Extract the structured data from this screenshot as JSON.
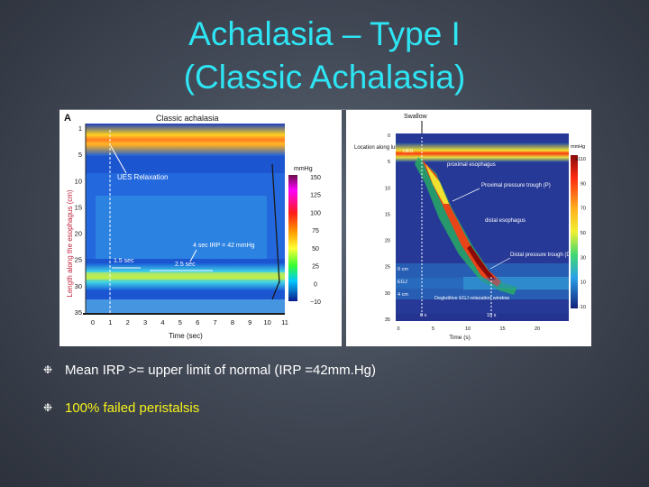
{
  "title": {
    "line1": "Achalasia – Type I",
    "line2": "(Classic Achalasia)"
  },
  "left_figure": {
    "panel_letter": "A",
    "caption": "Classic achalasia",
    "ylabel": "Length along the esophagus (cm)",
    "y_ticks": [
      "1",
      "5",
      "10",
      "15",
      "20",
      "25",
      "30",
      "35"
    ],
    "xlabel": "Time (sec)",
    "x_ticks": [
      "0",
      "1",
      "2",
      "3",
      "4",
      "5",
      "6",
      "7",
      "8",
      "9",
      "10",
      "11"
    ],
    "annotations": {
      "ues_relaxation": "UES Relaxation",
      "irp": "4 sec IRP = 42 mmHg",
      "t1": "1.5 sec",
      "t2": "2.5 sec"
    },
    "colorbar": {
      "unit": "mmHg",
      "ticks": [
        "150",
        "125",
        "100",
        "75",
        "50",
        "25",
        "0",
        "−10"
      ]
    }
  },
  "right_figure": {
    "swallow": "Swallow",
    "location_label": "Location along lumen (cm)",
    "y_ticks": [
      "0",
      "5",
      "10",
      "15",
      "20",
      "25",
      "30",
      "35"
    ],
    "xlabel": "Time (s)",
    "x_ticks": [
      "0",
      "5",
      "10",
      "15",
      "20"
    ],
    "annotations": {
      "ues": "UES",
      "proximal_esophagus": "proximal esophagus",
      "proximal_trough": "Proximal pressure trough (P)",
      "distal_esophagus": "distal esophagus",
      "distal_trough": "Distal pressure trough (D)",
      "deglutitive": "Deglutitive EGJ relaxation window",
      "zero_s": "0 s",
      "ten_s": "10 s",
      "zero_cm": "0 cm",
      "egj": "EGJ",
      "four_cm": "4 cm"
    },
    "colorbar": {
      "unit": "mmHg",
      "ticks": [
        "≥110",
        "90",
        "70",
        "50",
        "30",
        "10",
        "-10"
      ]
    }
  },
  "bullets": [
    "Mean IRP >= upper limit of normal (IRP =42mm.Hg)",
    "100% failed peristalsis"
  ],
  "colors": {
    "title": "#2ee5f4",
    "bullet1": "#ffffff",
    "bullet2": "#f7f21a"
  }
}
